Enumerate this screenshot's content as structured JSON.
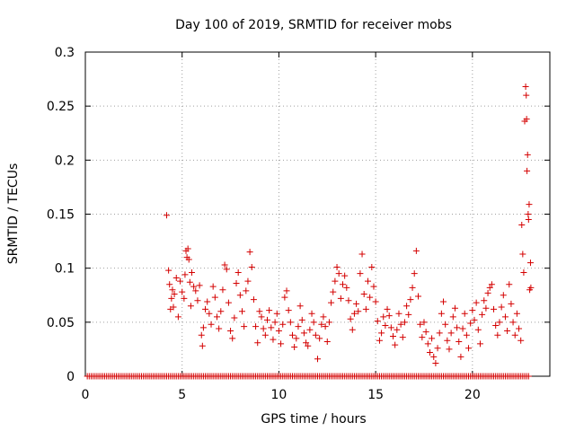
{
  "chart_data": {
    "type": "scatter",
    "title": "Day 100 of 2019, SRMTID for receiver mobs",
    "xlabel": "GPS time / hours",
    "ylabel": "SRMTID / TECUs",
    "xlim": [
      0,
      24
    ],
    "ylim": [
      0,
      0.3
    ],
    "x_ticks": [
      0,
      5,
      10,
      15,
      20
    ],
    "y_ticks": [
      0,
      0.05,
      0.1,
      0.15,
      0.2,
      0.25,
      0.3
    ],
    "x_tick_labels": [
      "0",
      "5",
      "10",
      "15",
      "20"
    ],
    "y_tick_labels": [
      "0",
      "0.05",
      "0.1",
      "0.15",
      "0.2",
      "0.25",
      "0.3"
    ],
    "grid": true,
    "marker": "+",
    "marker_color": "#d40000",
    "series": [
      {
        "name": "mobs",
        "zero_baseline": {
          "x_start": 0.1,
          "x_end": 22.9,
          "step": 0.1,
          "y": 0
        },
        "points": [
          [
            4.2,
            0.149
          ],
          [
            4.3,
            0.098
          ],
          [
            4.35,
            0.085
          ],
          [
            4.4,
            0.062
          ],
          [
            4.45,
            0.072
          ],
          [
            4.5,
            0.08
          ],
          [
            4.55,
            0.064
          ],
          [
            4.6,
            0.076
          ],
          [
            4.7,
            0.091
          ],
          [
            4.8,
            0.055
          ],
          [
            4.9,
            0.088
          ],
          [
            5.0,
            0.078
          ],
          [
            5.1,
            0.072
          ],
          [
            5.15,
            0.094
          ],
          [
            5.2,
            0.116
          ],
          [
            5.25,
            0.11
          ],
          [
            5.3,
            0.118
          ],
          [
            5.35,
            0.108
          ],
          [
            5.4,
            0.087
          ],
          [
            5.45,
            0.065
          ],
          [
            5.5,
            0.096
          ],
          [
            5.6,
            0.083
          ],
          [
            5.7,
            0.079
          ],
          [
            5.8,
            0.07
          ],
          [
            5.9,
            0.084
          ],
          [
            6.0,
            0.038
          ],
          [
            6.05,
            0.028
          ],
          [
            6.1,
            0.045
          ],
          [
            6.2,
            0.062
          ],
          [
            6.3,
            0.069
          ],
          [
            6.4,
            0.058
          ],
          [
            6.5,
            0.048
          ],
          [
            6.6,
            0.083
          ],
          [
            6.7,
            0.073
          ],
          [
            6.8,
            0.055
          ],
          [
            6.9,
            0.044
          ],
          [
            7.0,
            0.06
          ],
          [
            7.1,
            0.08
          ],
          [
            7.2,
            0.103
          ],
          [
            7.3,
            0.099
          ],
          [
            7.4,
            0.068
          ],
          [
            7.5,
            0.042
          ],
          [
            7.6,
            0.035
          ],
          [
            7.7,
            0.054
          ],
          [
            7.8,
            0.086
          ],
          [
            7.9,
            0.096
          ],
          [
            8.0,
            0.075
          ],
          [
            8.1,
            0.06
          ],
          [
            8.2,
            0.046
          ],
          [
            8.3,
            0.079
          ],
          [
            8.4,
            0.088
          ],
          [
            8.5,
            0.115
          ],
          [
            8.6,
            0.101
          ],
          [
            8.7,
            0.071
          ],
          [
            8.8,
            0.046
          ],
          [
            8.9,
            0.031
          ],
          [
            9.0,
            0.06
          ],
          [
            9.1,
            0.055
          ],
          [
            9.2,
            0.044
          ],
          [
            9.3,
            0.038
          ],
          [
            9.4,
            0.052
          ],
          [
            9.5,
            0.061
          ],
          [
            9.6,
            0.045
          ],
          [
            9.7,
            0.034
          ],
          [
            9.8,
            0.05
          ],
          [
            9.9,
            0.058
          ],
          [
            10.0,
            0.042
          ],
          [
            10.1,
            0.03
          ],
          [
            10.2,
            0.048
          ],
          [
            10.3,
            0.073
          ],
          [
            10.4,
            0.079
          ],
          [
            10.5,
            0.061
          ],
          [
            10.6,
            0.05
          ],
          [
            10.7,
            0.038
          ],
          [
            10.8,
            0.027
          ],
          [
            10.9,
            0.035
          ],
          [
            11.0,
            0.046
          ],
          [
            11.1,
            0.065
          ],
          [
            11.2,
            0.052
          ],
          [
            11.3,
            0.04
          ],
          [
            11.4,
            0.031
          ],
          [
            11.5,
            0.028
          ],
          [
            11.6,
            0.043
          ],
          [
            11.7,
            0.058
          ],
          [
            11.8,
            0.05
          ],
          [
            11.9,
            0.038
          ],
          [
            12.0,
            0.016
          ],
          [
            12.1,
            0.035
          ],
          [
            12.2,
            0.048
          ],
          [
            12.3,
            0.055
          ],
          [
            12.4,
            0.046
          ],
          [
            12.5,
            0.032
          ],
          [
            12.6,
            0.05
          ],
          [
            12.7,
            0.068
          ],
          [
            12.8,
            0.078
          ],
          [
            12.9,
            0.088
          ],
          [
            13.0,
            0.101
          ],
          [
            13.1,
            0.095
          ],
          [
            13.2,
            0.072
          ],
          [
            13.3,
            0.085
          ],
          [
            13.4,
            0.093
          ],
          [
            13.5,
            0.082
          ],
          [
            13.6,
            0.07
          ],
          [
            13.7,
            0.053
          ],
          [
            13.8,
            0.043
          ],
          [
            13.9,
            0.058
          ],
          [
            14.0,
            0.067
          ],
          [
            14.1,
            0.06
          ],
          [
            14.2,
            0.095
          ],
          [
            14.3,
            0.113
          ],
          [
            14.4,
            0.076
          ],
          [
            14.5,
            0.062
          ],
          [
            14.6,
            0.088
          ],
          [
            14.7,
            0.073
          ],
          [
            14.8,
            0.101
          ],
          [
            14.9,
            0.083
          ],
          [
            15.0,
            0.069
          ],
          [
            15.1,
            0.051
          ],
          [
            15.2,
            0.033
          ],
          [
            15.3,
            0.04
          ],
          [
            15.4,
            0.055
          ],
          [
            15.5,
            0.047
          ],
          [
            15.6,
            0.062
          ],
          [
            15.7,
            0.056
          ],
          [
            15.8,
            0.045
          ],
          [
            15.9,
            0.037
          ],
          [
            16.0,
            0.029
          ],
          [
            16.1,
            0.043
          ],
          [
            16.2,
            0.058
          ],
          [
            16.3,
            0.048
          ],
          [
            16.4,
            0.036
          ],
          [
            16.5,
            0.05
          ],
          [
            16.6,
            0.065
          ],
          [
            16.7,
            0.057
          ],
          [
            16.8,
            0.071
          ],
          [
            16.9,
            0.082
          ],
          [
            17.0,
            0.095
          ],
          [
            17.1,
            0.116
          ],
          [
            17.2,
            0.074
          ],
          [
            17.3,
            0.048
          ],
          [
            17.4,
            0.036
          ],
          [
            17.5,
            0.05
          ],
          [
            17.6,
            0.041
          ],
          [
            17.7,
            0.03
          ],
          [
            17.8,
            0.022
          ],
          [
            17.9,
            0.035
          ],
          [
            18.0,
            0.018
          ],
          [
            18.1,
            0.012
          ],
          [
            18.2,
            0.026
          ],
          [
            18.3,
            0.04
          ],
          [
            18.4,
            0.058
          ],
          [
            18.5,
            0.069
          ],
          [
            18.6,
            0.048
          ],
          [
            18.7,
            0.033
          ],
          [
            18.8,
            0.025
          ],
          [
            18.9,
            0.04
          ],
          [
            19.0,
            0.055
          ],
          [
            19.1,
            0.063
          ],
          [
            19.2,
            0.045
          ],
          [
            19.3,
            0.032
          ],
          [
            19.4,
            0.018
          ],
          [
            19.5,
            0.044
          ],
          [
            19.6,
            0.058
          ],
          [
            19.7,
            0.038
          ],
          [
            19.8,
            0.026
          ],
          [
            19.9,
            0.049
          ],
          [
            20.0,
            0.061
          ],
          [
            20.1,
            0.052
          ],
          [
            20.2,
            0.068
          ],
          [
            20.3,
            0.043
          ],
          [
            20.4,
            0.03
          ],
          [
            20.5,
            0.057
          ],
          [
            20.6,
            0.07
          ],
          [
            20.7,
            0.063
          ],
          [
            20.8,
            0.077
          ],
          [
            20.9,
            0.082
          ],
          [
            21.0,
            0.085
          ],
          [
            21.1,
            0.062
          ],
          [
            21.2,
            0.047
          ],
          [
            21.3,
            0.038
          ],
          [
            21.4,
            0.05
          ],
          [
            21.5,
            0.064
          ],
          [
            21.6,
            0.075
          ],
          [
            21.7,
            0.055
          ],
          [
            21.8,
            0.042
          ],
          [
            21.9,
            0.085
          ],
          [
            22.0,
            0.067
          ],
          [
            22.1,
            0.05
          ],
          [
            22.2,
            0.038
          ],
          [
            22.3,
            0.058
          ],
          [
            22.4,
            0.044
          ],
          [
            22.5,
            0.033
          ],
          [
            22.55,
            0.14
          ],
          [
            22.6,
            0.113
          ],
          [
            22.65,
            0.096
          ],
          [
            22.7,
            0.236
          ],
          [
            22.75,
            0.268
          ],
          [
            22.78,
            0.26
          ],
          [
            22.8,
            0.238
          ],
          [
            22.82,
            0.19
          ],
          [
            22.85,
            0.205
          ],
          [
            22.88,
            0.15
          ],
          [
            22.9,
            0.145
          ],
          [
            22.93,
            0.159
          ],
          [
            22.96,
            0.08
          ],
          [
            23.0,
            0.105
          ],
          [
            23.02,
            0.082
          ]
        ]
      }
    ]
  }
}
